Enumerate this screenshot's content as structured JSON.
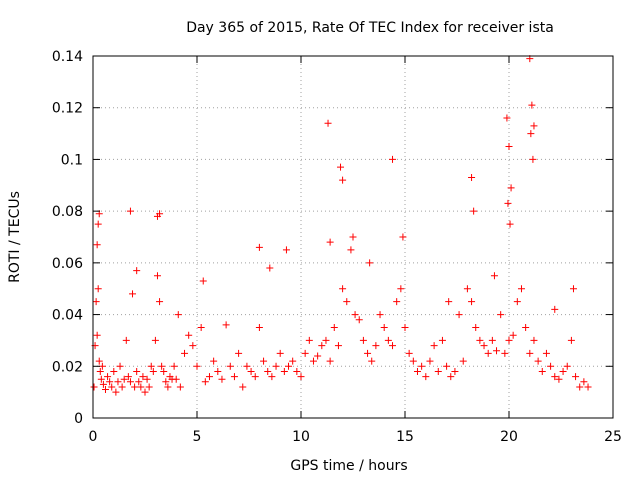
{
  "chart_data": {
    "type": "scatter",
    "title": "Day 365 of 2015, Rate Of TEC Index for receiver ista",
    "xlabel": "GPS time / hours",
    "ylabel": "ROTI / TECUs",
    "xlim": [
      0,
      25
    ],
    "ylim": [
      0,
      0.14
    ],
    "xticks": [
      0,
      5,
      10,
      15,
      20,
      25
    ],
    "xtick_labels": [
      "0",
      "5",
      "10",
      "15",
      "20",
      "25"
    ],
    "yticks": [
      0,
      0.02,
      0.04,
      0.06,
      0.08,
      0.1,
      0.12,
      0.14
    ],
    "ytick_labels": [
      "0",
      "0.02",
      "0.04",
      "0.06",
      "0.08",
      "0.1",
      "0.12",
      "0.14"
    ],
    "grid": true,
    "marker": "+",
    "series": [
      {
        "name": "ROTI",
        "color": "#ff0000",
        "x": [
          0.05,
          0.1,
          0.15,
          0.2,
          0.25,
          0.3,
          0.35,
          0.4,
          0.45,
          0.5,
          0.6,
          0.7,
          0.8,
          0.9,
          1.0,
          1.1,
          1.2,
          1.3,
          1.4,
          1.5,
          1.6,
          1.7,
          1.8,
          1.9,
          2.0,
          2.1,
          2.2,
          2.3,
          2.4,
          2.5,
          2.6,
          2.7,
          2.8,
          2.9,
          3.0,
          3.1,
          3.2,
          3.3,
          3.4,
          3.5,
          3.6,
          3.7,
          3.8,
          3.9,
          4.0,
          4.2,
          4.4,
          4.6,
          4.8,
          5.0,
          5.2,
          5.4,
          5.6,
          5.8,
          6.0,
          6.2,
          6.4,
          6.6,
          6.8,
          7.0,
          7.2,
          7.4,
          7.6,
          7.8,
          8.0,
          8.2,
          8.4,
          8.6,
          8.8,
          9.0,
          9.2,
          9.4,
          9.6,
          9.8,
          10.0,
          10.2,
          10.4,
          10.6,
          10.8,
          11.0,
          11.2,
          11.4,
          11.6,
          11.8,
          12.0,
          12.2,
          12.4,
          12.6,
          12.8,
          13.0,
          13.2,
          13.4,
          13.6,
          13.8,
          14.0,
          14.2,
          14.4,
          14.6,
          14.8,
          15.0,
          15.2,
          15.4,
          15.6,
          15.8,
          16.0,
          16.2,
          16.4,
          16.6,
          16.8,
          17.0,
          17.2,
          17.4,
          17.6,
          17.8,
          18.0,
          18.2,
          18.4,
          18.6,
          18.8,
          19.0,
          19.2,
          19.4,
          19.6,
          19.8,
          20.0,
          20.2,
          20.4,
          20.6,
          20.8,
          21.0,
          21.2,
          21.4,
          21.6,
          21.8,
          22.0,
          22.2,
          22.4,
          22.6,
          22.8,
          23.0,
          23.2,
          23.4,
          23.6,
          23.8,
          0.3,
          1.8,
          3.1,
          3.2,
          0.2,
          0.25,
          8.0,
          11.3,
          11.4,
          11.9,
          12.0,
          12.5,
          14.4,
          14.9,
          18.2,
          18.3,
          19.9,
          20.0,
          20.1,
          21.0,
          21.1,
          21.2,
          21.05,
          21.15,
          20.05,
          19.95,
          2.1,
          4.1,
          5.3,
          8.5,
          9.3,
          13.3,
          17.1,
          19.3,
          22.2,
          23.1
        ],
        "y": [
          0.012,
          0.028,
          0.045,
          0.032,
          0.05,
          0.022,
          0.018,
          0.015,
          0.02,
          0.013,
          0.011,
          0.016,
          0.014,
          0.012,
          0.018,
          0.01,
          0.014,
          0.02,
          0.012,
          0.015,
          0.03,
          0.016,
          0.014,
          0.048,
          0.012,
          0.018,
          0.014,
          0.012,
          0.016,
          0.01,
          0.015,
          0.012,
          0.02,
          0.018,
          0.03,
          0.055,
          0.045,
          0.02,
          0.018,
          0.014,
          0.012,
          0.016,
          0.015,
          0.02,
          0.015,
          0.012,
          0.025,
          0.032,
          0.028,
          0.02,
          0.035,
          0.014,
          0.016,
          0.022,
          0.018,
          0.015,
          0.036,
          0.02,
          0.016,
          0.025,
          0.012,
          0.02,
          0.018,
          0.016,
          0.035,
          0.022,
          0.018,
          0.016,
          0.02,
          0.025,
          0.018,
          0.02,
          0.022,
          0.018,
          0.016,
          0.025,
          0.03,
          0.022,
          0.024,
          0.028,
          0.03,
          0.022,
          0.035,
          0.028,
          0.05,
          0.045,
          0.065,
          0.04,
          0.038,
          0.03,
          0.025,
          0.022,
          0.028,
          0.04,
          0.035,
          0.03,
          0.028,
          0.045,
          0.05,
          0.035,
          0.025,
          0.022,
          0.018,
          0.02,
          0.016,
          0.022,
          0.028,
          0.018,
          0.03,
          0.02,
          0.016,
          0.018,
          0.04,
          0.022,
          0.05,
          0.045,
          0.035,
          0.03,
          0.028,
          0.025,
          0.03,
          0.026,
          0.04,
          0.025,
          0.03,
          0.032,
          0.045,
          0.05,
          0.035,
          0.025,
          0.03,
          0.022,
          0.018,
          0.025,
          0.02,
          0.016,
          0.015,
          0.018,
          0.02,
          0.03,
          0.016,
          0.012,
          0.014,
          0.012,
          0.079,
          0.08,
          0.078,
          0.079,
          0.067,
          0.075,
          0.066,
          0.114,
          0.068,
          0.097,
          0.092,
          0.07,
          0.1,
          0.07,
          0.093,
          0.08,
          0.116,
          0.105,
          0.089,
          0.139,
          0.121,
          0.113,
          0.11,
          0.1,
          0.075,
          0.083,
          0.057,
          0.04,
          0.053,
          0.058,
          0.065,
          0.06,
          0.045,
          0.055,
          0.042,
          0.05
        ]
      }
    ]
  }
}
